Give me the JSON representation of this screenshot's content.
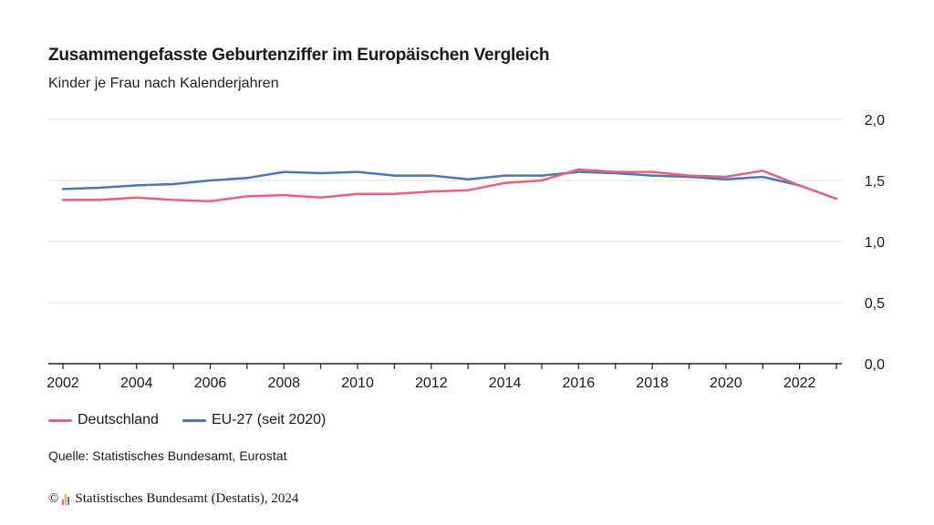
{
  "header": {
    "title": "Zusammengefasste Geburtenziffer im Europäischen Vergleich",
    "subtitle": "Kinder je Frau nach Kalenderjahren"
  },
  "chart_data": {
    "type": "line",
    "title": "Zusammengefasste Geburtenziffer im Europäischen Vergleich",
    "subtitle": "Kinder je Frau nach Kalenderjahren",
    "xlabel": "",
    "ylabel": "",
    "xlim": [
      2002,
      2023
    ],
    "ylim": [
      0,
      2
    ],
    "x_ticks": [
      "2002",
      "2004",
      "2006",
      "2008",
      "2010",
      "2012",
      "2014",
      "2016",
      "2018",
      "2020",
      "2022"
    ],
    "y_ticks": [
      "0,0",
      "0,5",
      "1,0",
      "1,5",
      "2,0"
    ],
    "y_tick_values": [
      0,
      0.5,
      1,
      1.5,
      2
    ],
    "y_axis_position": "right",
    "grid": true,
    "legend_position": "bottom-left",
    "x": [
      2002,
      2003,
      2004,
      2005,
      2006,
      2007,
      2008,
      2009,
      2010,
      2011,
      2012,
      2013,
      2014,
      2015,
      2016,
      2017,
      2018,
      2019,
      2020,
      2021,
      2022,
      2023
    ],
    "series": [
      {
        "name": "Deutschland",
        "color": "#e8607a",
        "values": [
          1.34,
          1.34,
          1.36,
          1.34,
          1.33,
          1.37,
          1.38,
          1.36,
          1.39,
          1.39,
          1.41,
          1.42,
          1.48,
          1.5,
          1.59,
          1.57,
          1.57,
          1.54,
          1.53,
          1.58,
          1.46,
          1.35
        ]
      },
      {
        "name": "EU-27 (seit 2020)",
        "color": "#4a77b9",
        "values": [
          1.43,
          1.44,
          1.46,
          1.47,
          1.5,
          1.52,
          1.57,
          1.56,
          1.57,
          1.54,
          1.54,
          1.51,
          1.54,
          1.54,
          1.57,
          1.56,
          1.54,
          1.53,
          1.51,
          1.53,
          1.46,
          null
        ]
      }
    ]
  },
  "footer": {
    "source": "Quelle: Statistisches Bundesamt, Eurostat",
    "copyright_symbol": "©",
    "copyright_text": "Statistisches Bundesamt (Destatis), 2024"
  },
  "colors": {
    "logo_bars": [
      "#e8607a",
      "#f2b134",
      "#4a77b9"
    ]
  }
}
